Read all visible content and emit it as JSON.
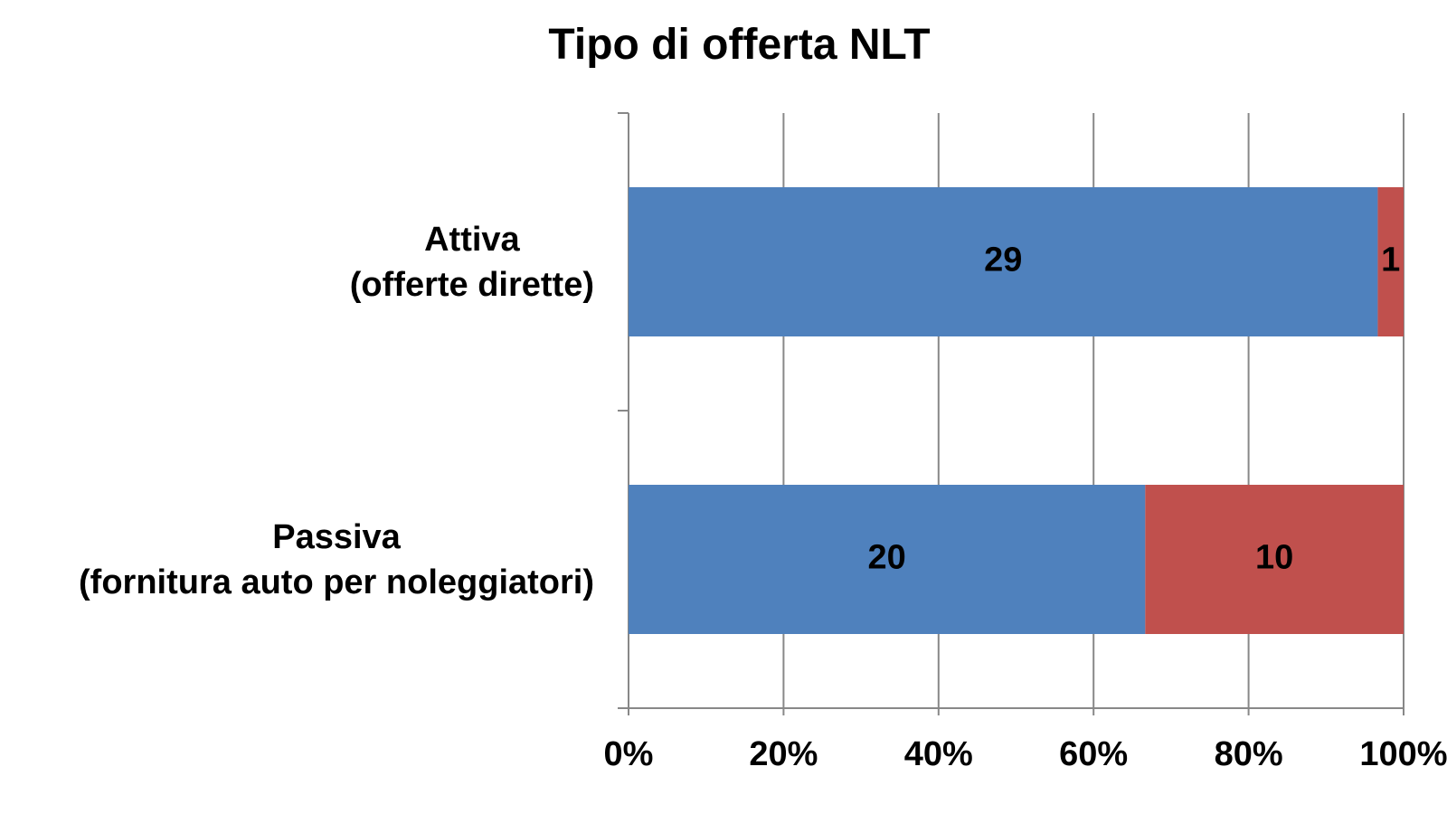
{
  "chart_data": {
    "type": "bar",
    "orientation": "horizontal",
    "stacking": "percent",
    "title": "Tipo di offerta NLT",
    "categories": [
      "Attiva\n(offerte dirette)",
      "Passiva\n(fornitura auto per noleggiatori)"
    ],
    "series": [
      {
        "color": "#4f81bd",
        "values": [
          29,
          20
        ]
      },
      {
        "color": "#c0504d",
        "values": [
          1,
          10
        ]
      }
    ],
    "xlim": [
      0,
      100
    ],
    "xticks": [
      {
        "value": 0,
        "label": "0%"
      },
      {
        "value": 20,
        "label": "20%"
      },
      {
        "value": 40,
        "label": "40%"
      },
      {
        "value": 60,
        "label": "60%"
      },
      {
        "value": 80,
        "label": "80%"
      },
      {
        "value": 100,
        "label": "100%"
      }
    ],
    "grid": true
  }
}
